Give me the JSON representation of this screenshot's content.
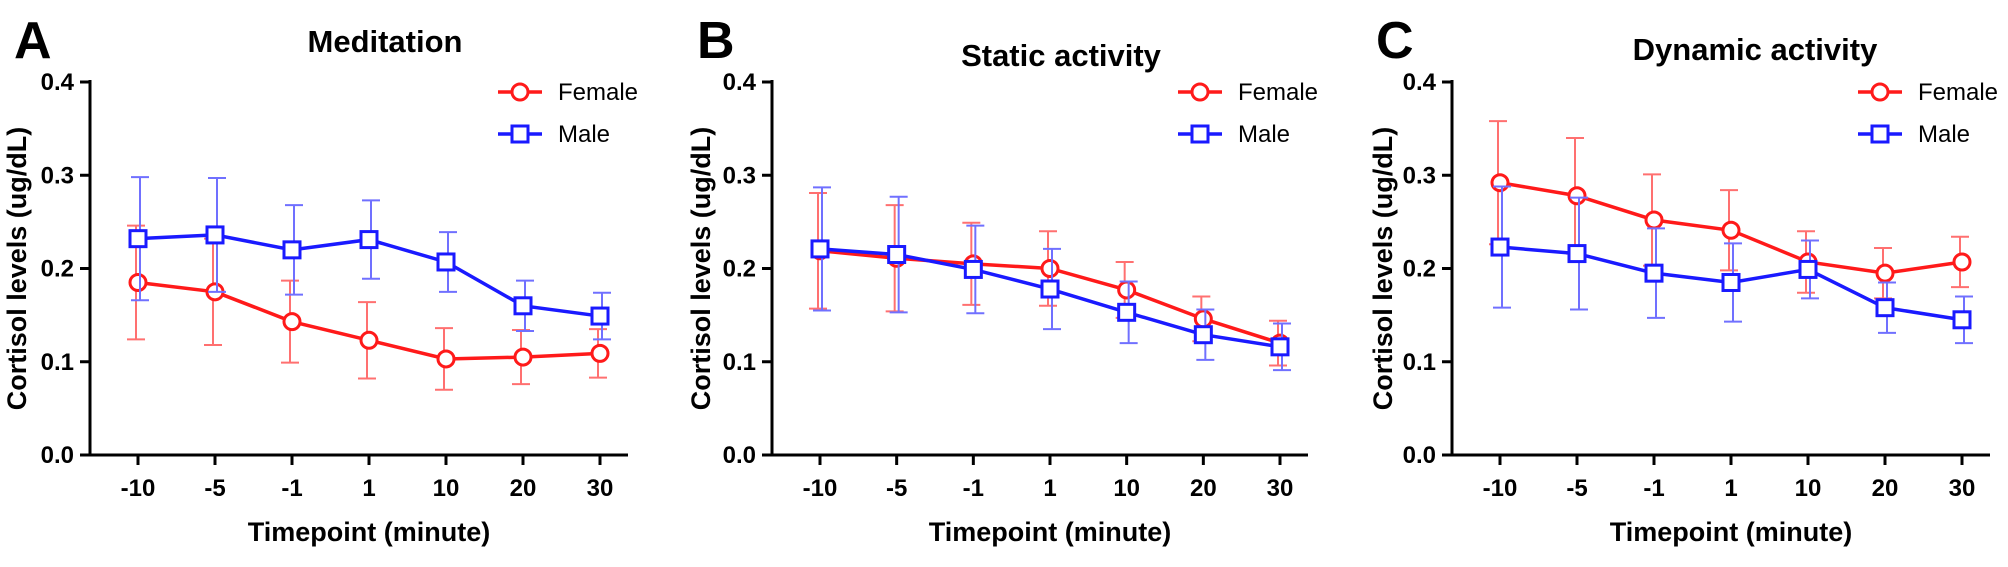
{
  "chart_data": [
    {
      "type": "line",
      "panel": "A",
      "title": "Meditation",
      "xlabel": "Timepoint (minute)",
      "ylabel": "Cortisol levels (ug/dL)",
      "categories": [
        "-10",
        "-5",
        "-1",
        "1",
        "10",
        "20",
        "30"
      ],
      "ylim": [
        0,
        0.4
      ],
      "yticks": [
        "0.0",
        "0.1",
        "0.2",
        "0.3",
        "0.4"
      ],
      "legend_position": "top-right",
      "series": [
        {
          "name": "Female",
          "color": "#ff1a1a",
          "marker": "circle",
          "values": [
            0.185,
            0.175,
            0.143,
            0.123,
            0.103,
            0.105,
            0.109
          ],
          "error": [
            0.061,
            0.057,
            0.044,
            0.041,
            0.033,
            0.029,
            0.026
          ]
        },
        {
          "name": "Male",
          "color": "#1a1aff",
          "marker": "square",
          "values": [
            0.232,
            0.236,
            0.22,
            0.231,
            0.207,
            0.16,
            0.149
          ],
          "error": [
            0.066,
            0.061,
            0.048,
            0.042,
            0.032,
            0.027,
            0.025
          ]
        }
      ]
    },
    {
      "type": "line",
      "panel": "B",
      "title": "Static activity",
      "xlabel": "Timepoint (minute)",
      "ylabel": "Cortisol levels (ug/dL)",
      "categories": [
        "-10",
        "-5",
        "-1",
        "1",
        "10",
        "20",
        "30"
      ],
      "ylim": [
        0,
        0.4
      ],
      "yticks": [
        "0.0",
        "0.1",
        "0.2",
        "0.3",
        "0.4"
      ],
      "legend_position": "top-right",
      "series": [
        {
          "name": "Female",
          "color": "#ff1a1a",
          "marker": "circle",
          "values": [
            0.219,
            0.211,
            0.205,
            0.2,
            0.177,
            0.146,
            0.12
          ],
          "error": [
            0.062,
            0.057,
            0.044,
            0.04,
            0.03,
            0.024,
            0.024
          ]
        },
        {
          "name": "Male",
          "color": "#1a1aff",
          "marker": "square",
          "values": [
            0.221,
            0.215,
            0.199,
            0.178,
            0.153,
            0.129,
            0.116
          ],
          "error": [
            0.066,
            0.062,
            0.047,
            0.043,
            0.033,
            0.027,
            0.025
          ]
        }
      ]
    },
    {
      "type": "line",
      "panel": "C",
      "title": "Dynamic activity",
      "xlabel": "Timepoint (minute)",
      "ylabel": "Cortisol levels (ug/dL)",
      "categories": [
        "-10",
        "-5",
        "-1",
        "1",
        "10",
        "20",
        "30"
      ],
      "ylim": [
        0,
        0.4
      ],
      "yticks": [
        "0.0",
        "0.1",
        "0.2",
        "0.3",
        "0.4"
      ],
      "legend_position": "top-right",
      "series": [
        {
          "name": "Female",
          "color": "#ff1a1a",
          "marker": "circle",
          "values": [
            0.292,
            0.278,
            0.252,
            0.241,
            0.207,
            0.195,
            0.207
          ],
          "error": [
            0.066,
            0.062,
            0.049,
            0.043,
            0.033,
            0.027,
            0.027
          ]
        },
        {
          "name": "Male",
          "color": "#1a1aff",
          "marker": "square",
          "values": [
            0.223,
            0.216,
            0.195,
            0.185,
            0.199,
            0.158,
            0.145
          ],
          "error": [
            0.065,
            0.06,
            0.048,
            0.042,
            0.031,
            0.027,
            0.025
          ]
        }
      ]
    }
  ]
}
